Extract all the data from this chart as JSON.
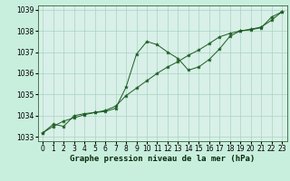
{
  "title": "Graphe pression niveau de la mer (hPa)",
  "bg_color": "#c8eedd",
  "plot_bg_color": "#d8f0e8",
  "grid_color": "#a0ccbb",
  "line_color": "#1a5c20",
  "marker_color": "#1a5c20",
  "xlim": [
    -0.5,
    23.5
  ],
  "ylim": [
    1032.8,
    1039.2
  ],
  "yticks": [
    1033,
    1034,
    1035,
    1036,
    1037,
    1038,
    1039
  ],
  "xticks": [
    0,
    1,
    2,
    3,
    4,
    5,
    6,
    7,
    8,
    9,
    10,
    11,
    12,
    13,
    14,
    15,
    16,
    17,
    18,
    19,
    20,
    21,
    22,
    23
  ],
  "series1_x": [
    0,
    1,
    2,
    3,
    4,
    5,
    6,
    7,
    8,
    9,
    10,
    11,
    12,
    13,
    14,
    15,
    16,
    17,
    18,
    19,
    20,
    21,
    22,
    23
  ],
  "series1_y": [
    1033.2,
    1033.6,
    1033.5,
    1034.0,
    1034.1,
    1034.15,
    1034.2,
    1034.35,
    1035.35,
    1036.9,
    1037.5,
    1037.35,
    1037.0,
    1036.7,
    1036.15,
    1036.3,
    1036.65,
    1037.15,
    1037.75,
    1038.0,
    1038.05,
    1038.15,
    1038.65,
    1038.9
  ],
  "series2_x": [
    0,
    1,
    2,
    3,
    4,
    5,
    6,
    7,
    8,
    9,
    10,
    11,
    12,
    13,
    14,
    15,
    16,
    17,
    18,
    19,
    20,
    21,
    22,
    23
  ],
  "series2_y": [
    1033.2,
    1033.5,
    1033.75,
    1033.9,
    1034.05,
    1034.15,
    1034.25,
    1034.45,
    1034.95,
    1035.3,
    1035.65,
    1036.0,
    1036.3,
    1036.55,
    1036.85,
    1037.1,
    1037.4,
    1037.72,
    1037.88,
    1038.0,
    1038.08,
    1038.18,
    1038.5,
    1038.9
  ],
  "tick_fontsize": 5.5,
  "xlabel_fontsize": 6.5
}
